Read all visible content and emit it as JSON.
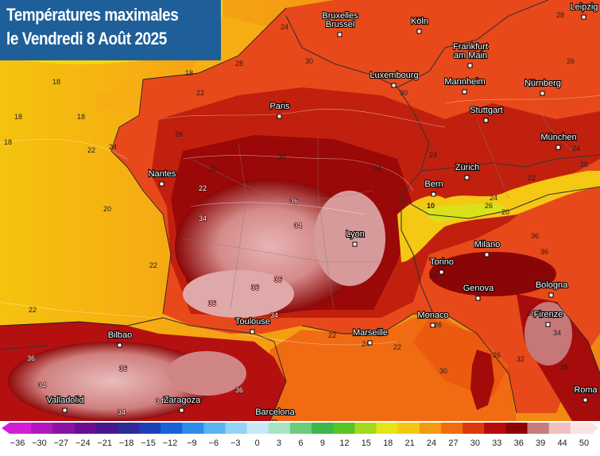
{
  "title": {
    "line1": "Températures maximales",
    "line2": "le Vendredi 8 Août 2025"
  },
  "cities": [
    {
      "name": "Bruxelles",
      "name2": "Brussel",
      "kind": "city-bruxelles"
    },
    {
      "name": "Köln",
      "kind": "city-koln"
    },
    {
      "name": "Leipzig",
      "kind": "city-leipzig"
    },
    {
      "name": "Frankfurt",
      "name2": "am Main",
      "kind": "city-frankfurt"
    },
    {
      "name": "Luxembourg",
      "kind": "city-luxembourg"
    },
    {
      "name": "Mannheim",
      "kind": "city-mannheim"
    },
    {
      "name": "Nürnberg",
      "kind": "city-nurnberg"
    },
    {
      "name": "Paris",
      "kind": "city-paris"
    },
    {
      "name": "Stuttgart",
      "kind": "city-stuttgart"
    },
    {
      "name": "München",
      "kind": "city-munchen"
    },
    {
      "name": "Nantes",
      "kind": "city-nantes"
    },
    {
      "name": "Zürich",
      "kind": "city-zurich"
    },
    {
      "name": "Bern",
      "kind": "city-bern"
    },
    {
      "name": "Lyon",
      "kind": "city-lyon"
    },
    {
      "name": "Milano",
      "kind": "city-milano"
    },
    {
      "name": "Torino",
      "kind": "city-torino"
    },
    {
      "name": "Genova",
      "kind": "city-genova"
    },
    {
      "name": "Bologna",
      "kind": "city-bologna"
    },
    {
      "name": "Monaco",
      "kind": "city-monaco"
    },
    {
      "name": "Toulouse",
      "kind": "city-toulouse"
    },
    {
      "name": "Marseille",
      "kind": "city-marseille"
    },
    {
      "name": "Firenze",
      "kind": "city-firenze"
    },
    {
      "name": "Bilbao",
      "kind": "city-bilbao"
    },
    {
      "name": "Valladolid",
      "kind": "city-valladolid"
    },
    {
      "name": "Zaragoza",
      "kind": "city-zaragoza"
    },
    {
      "name": "Barcelona",
      "kind": "city-barcelona"
    },
    {
      "name": "Roma",
      "kind": "city-roma"
    }
  ],
  "isotherm_labels": [
    "18",
    "18",
    "18",
    "18",
    "18",
    "20",
    "20",
    "22",
    "22",
    "22",
    "22",
    "22",
    "24",
    "24",
    "24",
    "24",
    "26",
    "26",
    "26",
    "28",
    "28",
    "30",
    "30",
    "34",
    "34",
    "34",
    "34",
    "36",
    "36",
    "36",
    "36",
    "36",
    "36",
    "34",
    "34",
    "22",
    "24",
    "22",
    "26",
    "26",
    "36",
    "36",
    "36",
    "34",
    "34",
    "36",
    "34",
    "20",
    "24",
    "22",
    "30",
    "26",
    "36",
    "32",
    "34",
    "10",
    "26"
  ],
  "legend": {
    "ticks": [
      "-36",
      "-30",
      "-27",
      "-24",
      "-21",
      "-18",
      "-15",
      "-12",
      "-9",
      "-6",
      "-3",
      "0",
      "3",
      "6",
      "9",
      "12",
      "15",
      "18",
      "21",
      "24",
      "27",
      "30",
      "33",
      "36",
      "39",
      "44",
      "50"
    ],
    "colors": [
      "#d21fd6",
      "#b216c0",
      "#8c11a8",
      "#6a0f94",
      "#4a1590",
      "#2e2a9a",
      "#1f3fb8",
      "#1762d6",
      "#2d8de8",
      "#5ab3f2",
      "#93d2f7",
      "#c8e8f8",
      "#a9e4c2",
      "#6ccc7d",
      "#3db64b",
      "#58c425",
      "#a2d91a",
      "#e6e413",
      "#f7c614",
      "#f49a12",
      "#ef6d0f",
      "#dc3a0c",
      "#b80a0a",
      "#8a0000",
      "#c97a7a",
      "#f0c0c0",
      "#fbe3e3"
    ]
  }
}
